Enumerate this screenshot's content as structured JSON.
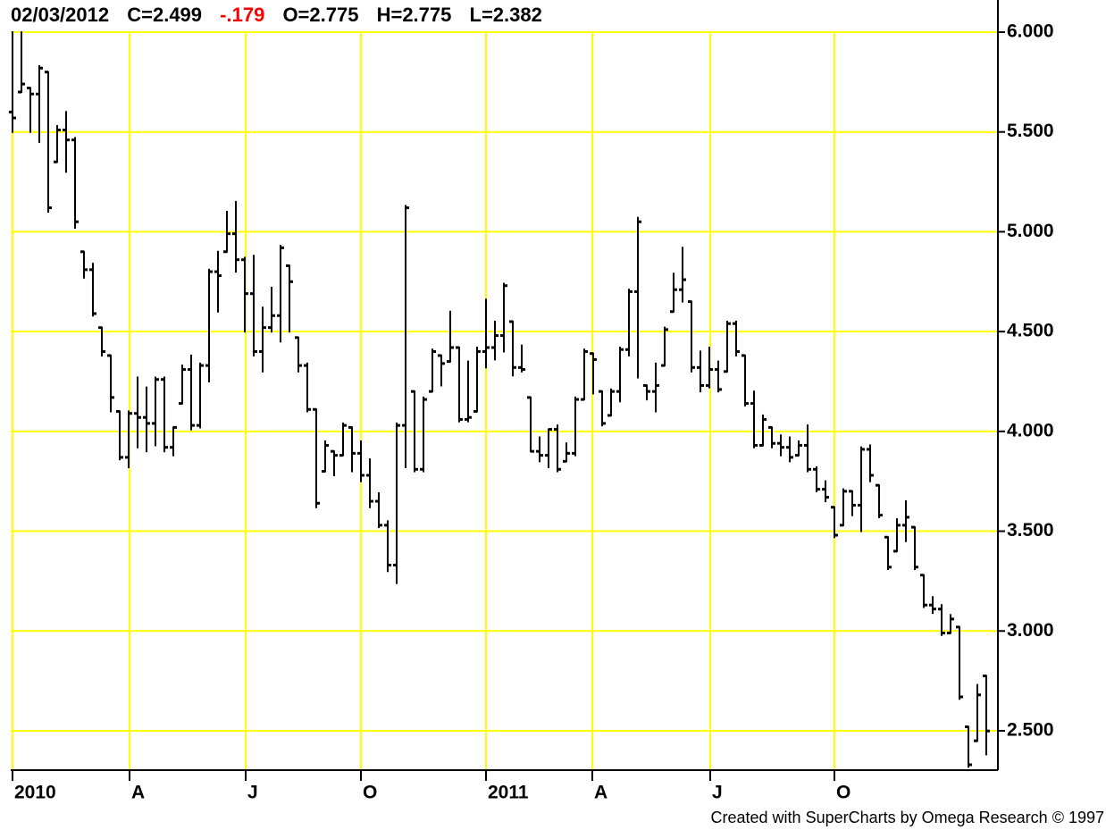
{
  "chart_data": {
    "type": "ohlc",
    "header": {
      "date": "02/03/2012",
      "close": "C=2.499",
      "change": "-.179",
      "open": "O=2.775",
      "high": "H=2.775",
      "low": "L=2.382"
    },
    "footer": "Created with SuperCharts by Omega Research © 1997",
    "color": "#000000",
    "change_color": "#ff0000",
    "grid_color": "#ffff00",
    "grid": true,
    "xlim": [
      -0.2,
      110.3
    ],
    "xticks": [
      {
        "value": 0,
        "label": "2010"
      },
      {
        "value": 13.1,
        "label": "A"
      },
      {
        "value": 26.1,
        "label": "J"
      },
      {
        "value": 39,
        "label": "O"
      },
      {
        "value": 53,
        "label": "2011"
      },
      {
        "value": 64.9,
        "label": "A"
      },
      {
        "value": 78.1,
        "label": "J"
      },
      {
        "value": 92,
        "label": "O"
      }
    ],
    "ylim": [
      2.303,
      6.161
    ],
    "yticks": [
      {
        "value": 2.5,
        "label": "2.500"
      },
      {
        "value": 3,
        "label": "3.000"
      },
      {
        "value": 3.5,
        "label": "3.500"
      },
      {
        "value": 4,
        "label": "4.000"
      },
      {
        "value": 4.5,
        "label": "4.500"
      },
      {
        "value": 5,
        "label": "5.000"
      },
      {
        "value": 5.5,
        "label": "5.500"
      },
      {
        "value": 6,
        "label": "6.000"
      }
    ],
    "open": [
      5.6,
      5.7,
      5.72,
      5.69,
      5.8,
      5.35,
      5.51,
      5.46,
      4.9,
      4.81,
      4.52,
      4.38,
      4.1,
      3.87,
      4.09,
      4.07,
      4.04,
      4.26,
      3.92,
      4.14,
      4.31,
      4.03,
      4.33,
      4.8,
      4.9,
      4.99,
      4.86,
      4.69,
      4.4,
      4.52,
      4.58,
      4.83,
      4.47,
      4.33,
      4.11,
      3.8,
      3.9,
      3.88,
      4.02,
      3.89,
      3.78,
      3.65,
      3.53,
      3.33,
      4.03,
      4.2,
      3.81,
      4.2,
      4.38,
      4.35,
      4.42,
      4.06,
      4.1,
      4.4,
      4.42,
      4.48,
      4.55,
      4.32,
      4.17,
      3.9,
      3.88,
      4.01,
      3.85,
      3.89,
      4.16,
      4.39,
      4.2,
      4.08,
      4.2,
      4.41,
      4.7,
      4.23,
      4.2,
      4.33,
      4.6,
      4.71,
      4.65,
      4.32,
      4.23,
      4.31,
      4.3,
      4.54,
      4.38,
      4.14,
      3.93,
      4.02,
      3.94,
      3.92,
      3.88,
      3.93,
      3.81,
      3.71,
      3.62,
      3.53,
      3.7,
      3.63,
      3.91,
      3.73,
      3.47,
      3.4,
      3.53,
      3.52,
      3.28,
      3.13,
      3.11,
      2.99,
      3.02,
      2.52,
      2.45,
      2.775
    ],
    "high": [
      6.0,
      6.0,
      5.72,
      5.83,
      5.8,
      5.53,
      5.6,
      5.47,
      4.9,
      4.84,
      4.52,
      4.38,
      4.1,
      4.1,
      4.27,
      4.22,
      4.27,
      4.27,
      4.02,
      4.33,
      4.38,
      4.34,
      4.81,
      4.9,
      5.1,
      5.15,
      4.87,
      4.88,
      4.62,
      4.72,
      4.93,
      4.83,
      4.47,
      4.34,
      4.11,
      3.95,
      3.9,
      4.04,
      4.02,
      3.95,
      3.86,
      3.69,
      3.55,
      4.04,
      5.13,
      4.2,
      4.17,
      4.41,
      4.38,
      4.6,
      4.42,
      4.35,
      4.42,
      4.66,
      4.55,
      4.74,
      4.55,
      4.43,
      4.17,
      3.97,
      4.01,
      4.03,
      3.94,
      4.17,
      4.41,
      4.39,
      4.2,
      4.21,
      4.42,
      4.71,
      5.07,
      4.23,
      4.34,
      4.52,
      4.79,
      4.92,
      4.65,
      4.4,
      4.42,
      4.35,
      4.55,
      4.55,
      4.38,
      4.2,
      4.08,
      4.02,
      3.98,
      3.97,
      3.95,
      4.03,
      3.82,
      3.75,
      3.62,
      3.71,
      3.7,
      3.92,
      3.93,
      3.73,
      3.47,
      3.56,
      3.65,
      3.52,
      3.28,
      3.17,
      3.13,
      3.08,
      3.02,
      2.52,
      2.73,
      2.775
    ],
    "low": [
      5.5,
      5.7,
      5.5,
      5.45,
      5.1,
      5.35,
      5.3,
      5.02,
      4.77,
      4.58,
      4.38,
      4.1,
      3.86,
      3.82,
      3.92,
      3.9,
      3.93,
      3.9,
      3.88,
      4.14,
      4.01,
      4.02,
      4.25,
      4.6,
      4.9,
      4.8,
      4.5,
      4.38,
      4.3,
      4.5,
      4.45,
      4.5,
      4.3,
      4.1,
      3.62,
      3.8,
      3.78,
      3.88,
      3.8,
      3.75,
      3.62,
      3.52,
      3.3,
      3.24,
      3.82,
      3.8,
      3.8,
      4.2,
      4.23,
      4.35,
      4.05,
      4.05,
      4.1,
      4.32,
      4.36,
      4.4,
      4.28,
      4.3,
      3.9,
      3.85,
      3.82,
      3.8,
      3.85,
      3.88,
      4.16,
      4.19,
      4.03,
      4.08,
      4.15,
      4.38,
      4.27,
      4.16,
      4.1,
      4.33,
      4.6,
      4.65,
      4.3,
      4.2,
      4.22,
      4.2,
      4.3,
      4.38,
      4.13,
      3.92,
      3.93,
      3.92,
      3.88,
      3.85,
      3.88,
      3.8,
      3.7,
      3.65,
      3.47,
      3.53,
      3.58,
      3.5,
      3.75,
      3.57,
      3.31,
      3.4,
      3.45,
      3.31,
      3.12,
      3.09,
      2.98,
      2.99,
      2.66,
      2.32,
      2.45,
      2.382
    ],
    "close": [
      5.57,
      5.74,
      5.69,
      5.82,
      5.12,
      5.51,
      5.46,
      5.05,
      4.81,
      4.59,
      4.4,
      4.17,
      3.87,
      4.09,
      4.07,
      4.04,
      4.26,
      3.92,
      4.02,
      4.31,
      4.03,
      4.33,
      4.8,
      4.78,
      4.99,
      4.86,
      4.69,
      4.4,
      4.52,
      4.58,
      4.92,
      4.75,
      4.33,
      4.11,
      3.64,
      3.93,
      3.88,
      4.03,
      3.89,
      3.78,
      3.65,
      3.53,
      3.33,
      4.03,
      5.12,
      3.81,
      4.16,
      4.4,
      4.34,
      4.42,
      4.06,
      4.07,
      4.4,
      4.42,
      4.48,
      4.73,
      4.32,
      4.31,
      3.9,
      3.88,
      4.01,
      3.81,
      3.89,
      4.16,
      4.4,
      4.36,
      4.04,
      4.2,
      4.41,
      4.7,
      5.05,
      4.2,
      4.23,
      4.51,
      4.71,
      4.76,
      4.32,
      4.23,
      4.31,
      4.21,
      4.54,
      4.4,
      4.14,
      3.93,
      4.06,
      3.94,
      3.92,
      3.87,
      3.93,
      3.81,
      3.71,
      3.67,
      3.48,
      3.7,
      3.63,
      3.91,
      3.78,
      3.58,
      3.32,
      3.53,
      3.57,
      3.32,
      3.13,
      3.11,
      2.99,
      3.06,
      2.67,
      2.33,
      2.68,
      2.499
    ]
  }
}
